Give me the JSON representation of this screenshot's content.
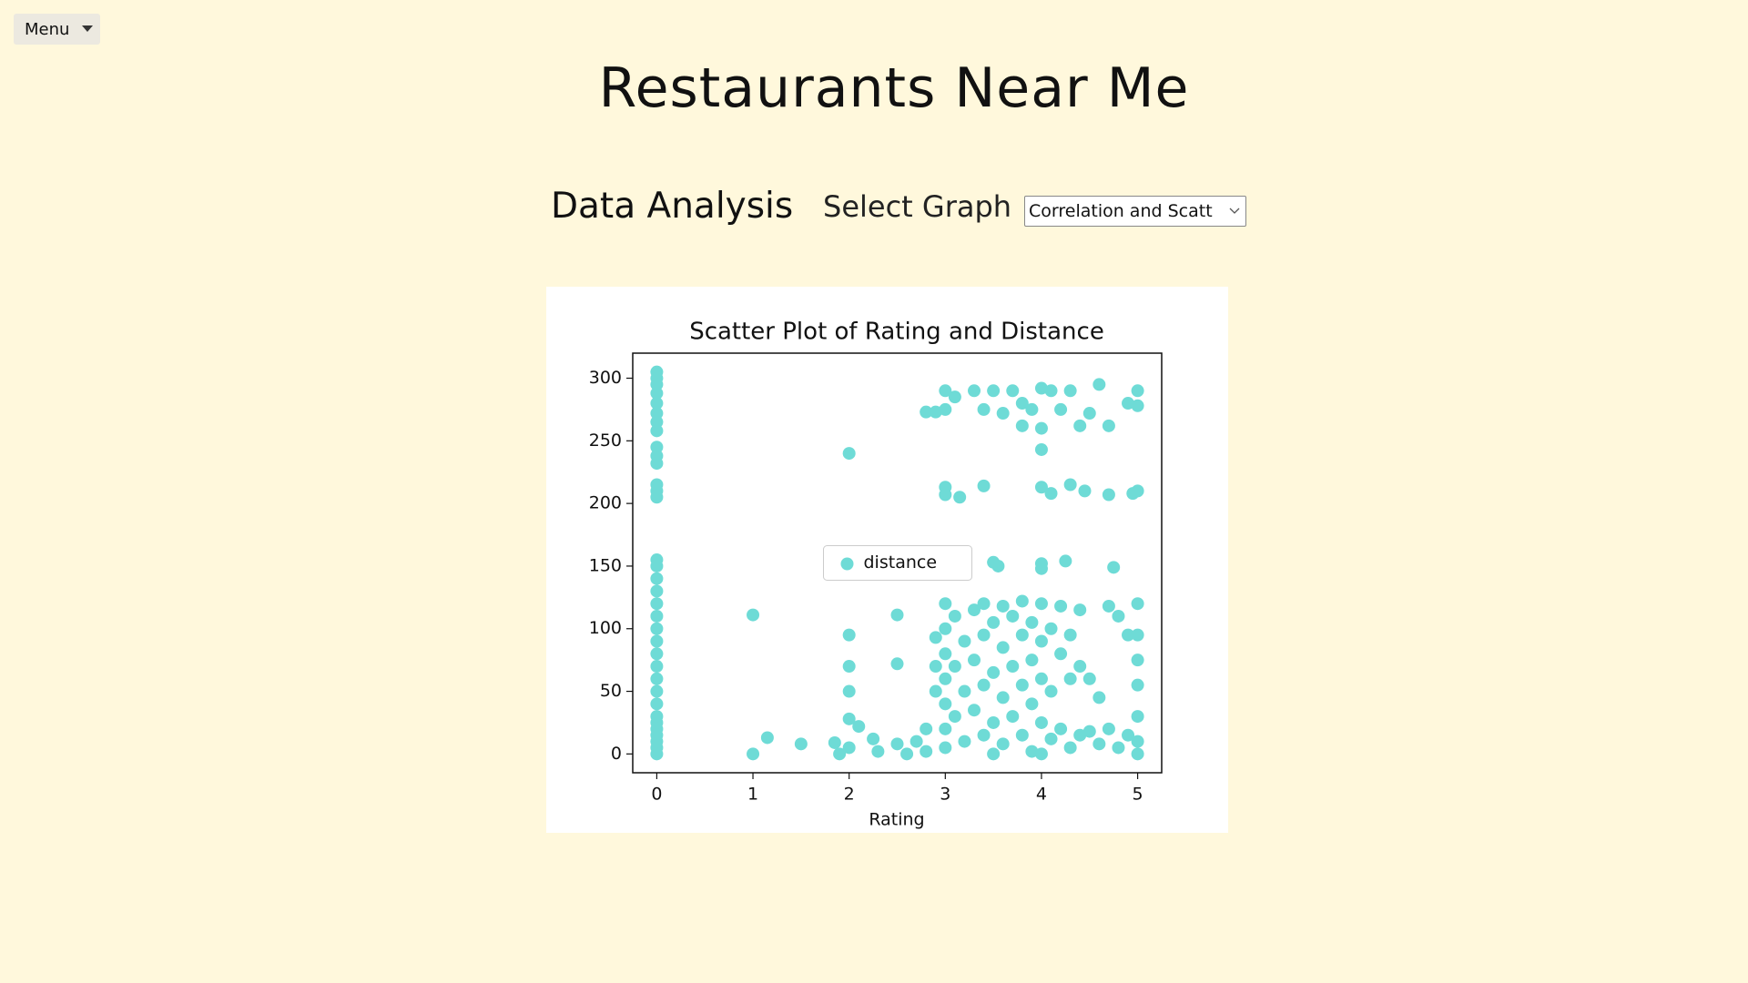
{
  "menu": {
    "label": "Menu"
  },
  "header": {
    "title": "Restaurants Near Me"
  },
  "controls": {
    "section": "Data Analysis",
    "select_label": "Select Graph",
    "select_value": "Correlation and Scatt"
  },
  "chart_data": {
    "type": "scatter",
    "title": "Scatter Plot of Rating and Distance",
    "xlabel": "Rating",
    "xlim": [
      -0.25,
      5.25
    ],
    "ylim": [
      -15,
      320
    ],
    "xticks": [
      0,
      1,
      2,
      3,
      4,
      5
    ],
    "yticks": [
      0,
      50,
      100,
      150,
      200,
      250,
      300
    ],
    "legend": "center",
    "series": [
      {
        "name": "distance",
        "color": "#6edbd6",
        "x": [
          0,
          0,
          0,
          0,
          0,
          0,
          0,
          0,
          0,
          0,
          0,
          0,
          0,
          0,
          0,
          0,
          0,
          0,
          0,
          0,
          0,
          0,
          0,
          0,
          0,
          0,
          0,
          0,
          0,
          0,
          0,
          0,
          0,
          0,
          1,
          1,
          1.15,
          1.5,
          1.85,
          2,
          2,
          2,
          2,
          2,
          2,
          2.1,
          2.25,
          2.5,
          2.5,
          2.5,
          1.9,
          2.3,
          2.8,
          2.9,
          3,
          3,
          3.1,
          3.3,
          3.4,
          3.5,
          3.6,
          3.7,
          3.8,
          3.9,
          4,
          4,
          4.1,
          4.2,
          4.3,
          4.4,
          4.5,
          4.6,
          4.7,
          4.9,
          5,
          5,
          3.8,
          4,
          3,
          3,
          3.15,
          3.4,
          4,
          4.1,
          4.3,
          4.45,
          4.7,
          4.95,
          5,
          3.55,
          3.5,
          4,
          4,
          4.25,
          4.75,
          3,
          3,
          3,
          3,
          3,
          3,
          3,
          3.1,
          3.1,
          3.1,
          3.2,
          3.2,
          3.2,
          3.3,
          3.3,
          3.3,
          3.4,
          3.4,
          3.4,
          3.4,
          3.5,
          3.5,
          3.5,
          3.5,
          3.6,
          3.6,
          3.6,
          3.6,
          3.7,
          3.7,
          3.7,
          3.8,
          3.8,
          3.8,
          3.8,
          3.9,
          3.9,
          3.9,
          3.9,
          4,
          4,
          4,
          4,
          4,
          4.1,
          4.1,
          4.1,
          4.2,
          4.2,
          4.2,
          4.3,
          4.3,
          4.3,
          4.4,
          4.4,
          4.4,
          4.5,
          4.5,
          4.6,
          4.6,
          4.7,
          4.7,
          4.8,
          4.8,
          4.9,
          4.9,
          5,
          5,
          5,
          5,
          5,
          5,
          5,
          2.7,
          2.8,
          2.9,
          2.9,
          2.9,
          2.6,
          2.8
        ],
        "y": [
          0,
          5,
          10,
          15,
          20,
          25,
          30,
          40,
          50,
          60,
          70,
          80,
          90,
          100,
          110,
          120,
          130,
          140,
          150,
          155,
          205,
          210,
          215,
          232,
          238,
          245,
          258,
          265,
          272,
          280,
          288,
          295,
          300,
          305,
          111,
          0,
          13,
          8,
          9,
          240,
          95,
          70,
          50,
          28,
          5,
          22,
          12,
          111,
          72,
          8,
          0,
          2,
          273,
          273,
          290,
          275,
          285,
          290,
          275,
          290,
          272,
          290,
          280,
          275,
          292,
          260,
          290,
          275,
          290,
          262,
          272,
          295,
          262,
          280,
          290,
          278,
          262,
          243,
          213,
          207,
          205,
          214,
          213,
          208,
          215,
          210,
          207,
          208,
          210,
          150,
          153,
          152,
          148,
          154,
          149,
          120,
          100,
          80,
          60,
          40,
          20,
          5,
          110,
          70,
          30,
          90,
          50,
          10,
          115,
          75,
          35,
          120,
          95,
          55,
          15,
          105,
          65,
          25,
          0,
          118,
          85,
          45,
          8,
          110,
          70,
          30,
          122,
          95,
          55,
          15,
          105,
          75,
          40,
          2,
          120,
          90,
          60,
          25,
          0,
          100,
          50,
          12,
          118,
          80,
          20,
          95,
          60,
          5,
          115,
          70,
          15,
          60,
          18,
          45,
          8,
          118,
          20,
          110,
          5,
          95,
          15,
          120,
          95,
          75,
          55,
          30,
          10,
          0,
          10,
          20,
          93,
          70,
          50,
          0,
          2
        ]
      }
    ]
  }
}
